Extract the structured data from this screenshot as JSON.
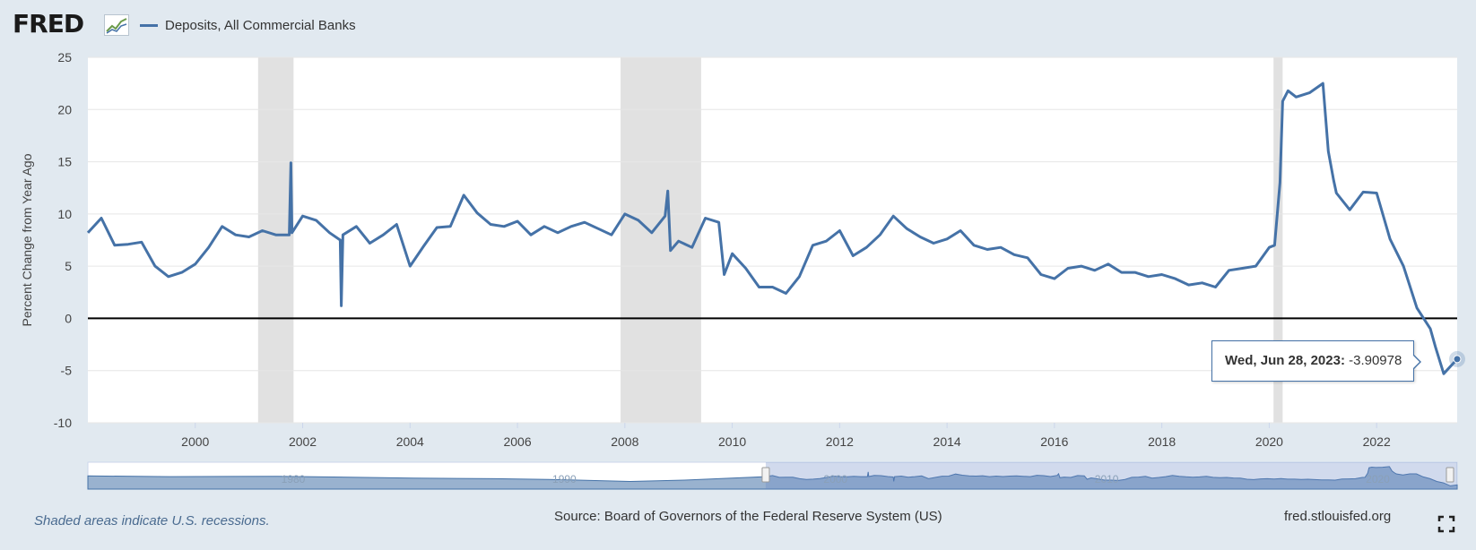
{
  "brand": {
    "logo_text": "FRED"
  },
  "tooltip": {
    "date": "Wed, Jun 28, 2023:",
    "value": " -3.90978"
  },
  "footer": {
    "note": "Shaded areas indicate U.S. recessions.",
    "source": "Source: Board of Governors of the Federal Reserve System (US)",
    "url": "fred.stlouisfed.org"
  },
  "navigator": {
    "tick_labels": [
      "1980",
      "1990",
      "2000",
      "2010",
      "2020"
    ]
  },
  "colors": {
    "series": "#4572a7",
    "recession": "#e1e1e1",
    "background": "#e1e9f0",
    "zero_line": "#000000"
  },
  "chart_data": {
    "type": "line",
    "title": "",
    "xlabel": "",
    "ylabel": "Percent Change from Year Ago",
    "xlim": [
      1998.0,
      2023.5
    ],
    "ylim": [
      -10,
      25
    ],
    "y_ticks": [
      -10,
      -5,
      0,
      5,
      10,
      15,
      20,
      25
    ],
    "x_ticks": [
      2000,
      2002,
      2004,
      2006,
      2008,
      2010,
      2012,
      2014,
      2016,
      2018,
      2020,
      2022
    ],
    "grid": true,
    "legend": "top-left",
    "recessions": [
      [
        2001.17,
        2001.83
      ],
      [
        2007.92,
        2009.42
      ],
      [
        2020.08,
        2020.25
      ]
    ],
    "series": [
      {
        "name": "Deposits, All Commercial Banks",
        "x": [
          1998.0,
          1998.25,
          1998.5,
          1998.75,
          1999.0,
          1999.25,
          1999.5,
          1999.75,
          2000.0,
          2000.25,
          2000.5,
          2000.75,
          2001.0,
          2001.25,
          2001.5,
          2001.75,
          2001.78,
          2001.8,
          2002.0,
          2002.25,
          2002.5,
          2002.7,
          2002.72,
          2002.75,
          2003.0,
          2003.25,
          2003.5,
          2003.75,
          2004.0,
          2004.25,
          2004.5,
          2004.75,
          2005.0,
          2005.25,
          2005.5,
          2005.75,
          2006.0,
          2006.25,
          2006.5,
          2006.75,
          2007.0,
          2007.25,
          2007.5,
          2007.75,
          2008.0,
          2008.25,
          2008.5,
          2008.75,
          2008.8,
          2008.85,
          2009.0,
          2009.25,
          2009.5,
          2009.75,
          2009.85,
          2010.0,
          2010.25,
          2010.5,
          2010.75,
          2011.0,
          2011.25,
          2011.5,
          2011.75,
          2012.0,
          2012.25,
          2012.5,
          2012.75,
          2013.0,
          2013.25,
          2013.5,
          2013.75,
          2014.0,
          2014.25,
          2014.5,
          2014.75,
          2015.0,
          2015.25,
          2015.5,
          2015.75,
          2016.0,
          2016.25,
          2016.5,
          2016.75,
          2017.0,
          2017.25,
          2017.5,
          2017.75,
          2018.0,
          2018.25,
          2018.5,
          2018.75,
          2019.0,
          2019.25,
          2019.5,
          2019.75,
          2020.0,
          2020.1,
          2020.2,
          2020.25,
          2020.35,
          2020.5,
          2020.75,
          2021.0,
          2021.1,
          2021.2,
          2021.25,
          2021.5,
          2021.75,
          2022.0,
          2022.25,
          2022.5,
          2022.75,
          2023.0,
          2023.1,
          2023.25,
          2023.5
        ],
        "values": [
          8.2,
          9.6,
          7.0,
          7.1,
          7.3,
          5.0,
          4.0,
          4.4,
          5.2,
          6.8,
          8.8,
          8.0,
          7.8,
          8.4,
          8.0,
          8.0,
          14.9,
          8.2,
          9.8,
          9.4,
          8.2,
          7.5,
          1.2,
          8.0,
          8.8,
          7.2,
          8.0,
          9.0,
          5.0,
          6.9,
          8.7,
          8.8,
          11.8,
          10.1,
          9.0,
          8.8,
          9.3,
          8.0,
          8.8,
          8.2,
          8.8,
          9.2,
          8.6,
          8.0,
          10.0,
          9.4,
          8.2,
          9.8,
          12.2,
          6.5,
          7.4,
          6.8,
          9.6,
          9.2,
          4.2,
          6.2,
          4.8,
          3.0,
          3.0,
          2.4,
          4.0,
          7.0,
          7.4,
          8.4,
          6.0,
          6.8,
          8.0,
          9.8,
          8.6,
          7.8,
          7.2,
          7.6,
          8.4,
          7.0,
          6.6,
          6.8,
          6.1,
          5.8,
          4.2,
          3.8,
          4.8,
          5.0,
          4.6,
          5.2,
          4.4,
          4.4,
          4.0,
          4.2,
          3.8,
          3.2,
          3.4,
          3.0,
          4.6,
          4.8,
          5.0,
          6.8,
          7.0,
          13.0,
          20.8,
          21.8,
          21.2,
          21.6,
          22.5,
          16.0,
          13.2,
          12.0,
          10.4,
          12.1,
          12.0,
          7.6,
          5.0,
          1.0,
          -1.0,
          -2.8,
          -5.3,
          -3.9
        ]
      }
    ]
  }
}
